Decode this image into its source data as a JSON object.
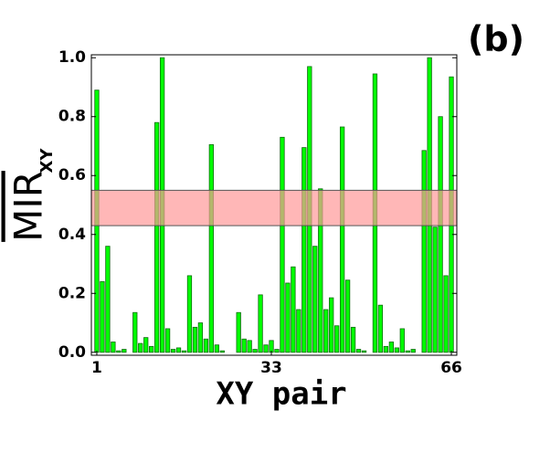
{
  "chart_data": {
    "type": "bar",
    "title": "(b)",
    "xlabel": "XY pair",
    "ylabel": "MIR",
    "ylabel_sub": "XY",
    "values": [
      0.89,
      0.24,
      0.36,
      0.035,
      0.005,
      0.01,
      0,
      0.135,
      0.03,
      0.05,
      0.02,
      0.78,
      1.0,
      0.08,
      0.01,
      0.015,
      0.005,
      0.26,
      0.085,
      0.1,
      0.045,
      0.705,
      0.025,
      0.005,
      0,
      0,
      0.135,
      0.045,
      0.04,
      0.01,
      0.195,
      0.025,
      0.04,
      0.01,
      0.73,
      0.235,
      0.29,
      0.145,
      0.695,
      0.97,
      0.36,
      0.555,
      0.145,
      0.185,
      0.09,
      0.765,
      0.245,
      0.085,
      0.01,
      0.005,
      0,
      0.945,
      0.16,
      0.02,
      0.035,
      0.015,
      0.08,
      0.005,
      0.01,
      0,
      0.685,
      1.0,
      0.425,
      0.8,
      0.26,
      0.935
    ],
    "color": "#00ff00",
    "band": [
      0.43,
      0.55
    ],
    "band_color": "#ff9999",
    "xlim": [
      0,
      67
    ],
    "xticks": [
      1,
      33,
      66
    ],
    "ylim": [
      -0.01,
      1.01
    ],
    "yticks": [
      {
        "value": 0,
        "label": "0.0"
      },
      0.2,
      0.4,
      0.6,
      0.8,
      {
        "value": 1,
        "label": "1.0"
      }
    ]
  }
}
